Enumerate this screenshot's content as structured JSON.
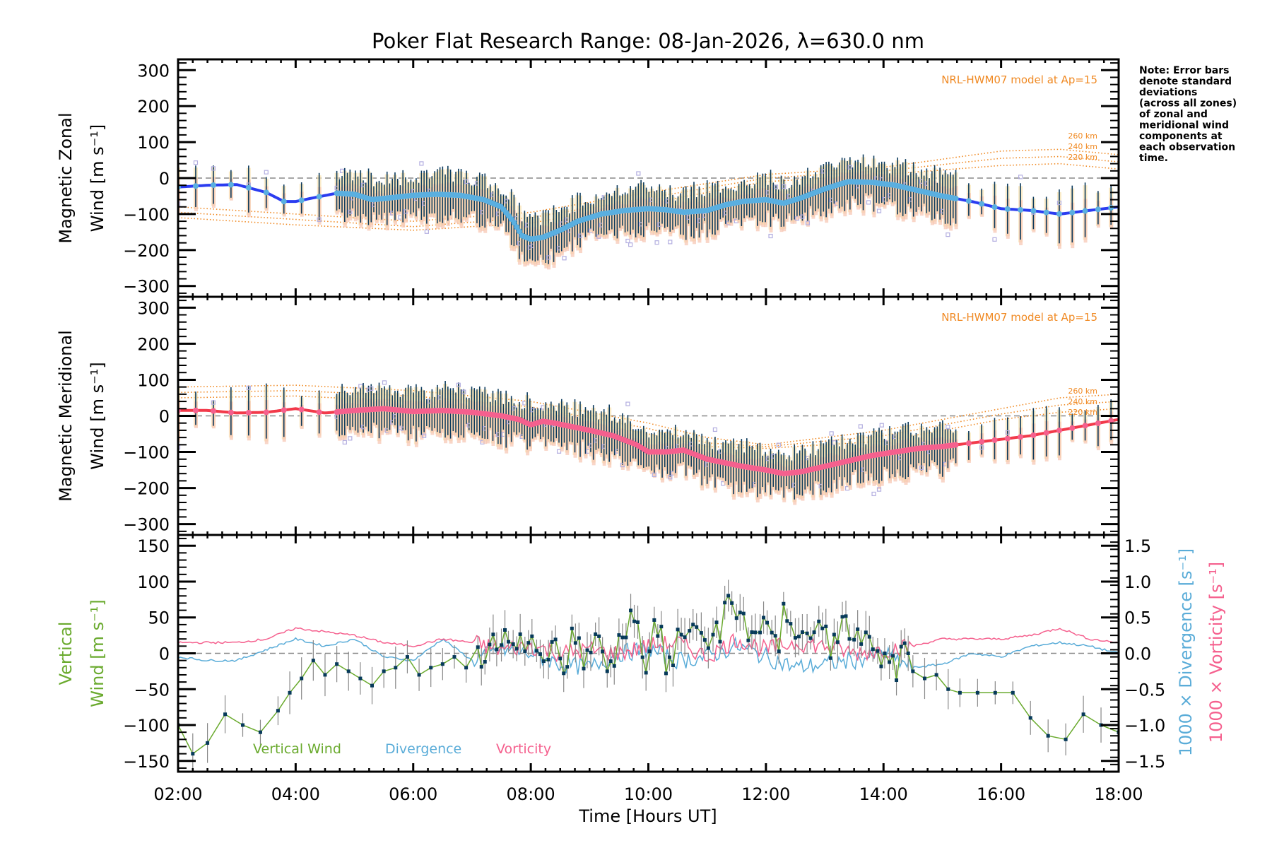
{
  "chart_data": {
    "title": "Poker Flat Research Range: 08-Jan-2026, λ=630.0 nm",
    "xlabel": "Time [Hours UT]",
    "x_ticks": [
      "02:00",
      "04:00",
      "06:00",
      "08:00",
      "10:00",
      "12:00",
      "14:00",
      "16:00",
      "18:00"
    ],
    "xlim_hours": [
      2,
      18
    ],
    "note": [
      "Note: Error bars",
      "denote standard",
      "deviations",
      "(across all zones)",
      "of zonal and",
      "meridional wind",
      "components at",
      "each observation",
      "time."
    ],
    "colors": {
      "zonal_fit": "#2b3cf0",
      "zonal_points": "#5aafe0",
      "meridional_fit": "#f23a4a",
      "meridional_points": "#f5608e",
      "error_bar": "#0d3b5c",
      "zone_scatter": "#b3aee0",
      "zone_band_warm": "#f7c4b0",
      "zone_band_yellow": "#f8e3b0",
      "model": "#f08a24",
      "vertical": "#6aaa2e",
      "vertical_marker": "#073a5a",
      "divergence": "#5aacd8",
      "vorticity": "#f5608e",
      "zero_line": "#888888"
    },
    "panels": [
      {
        "type": "line",
        "name": "zonal",
        "ylabel_line1": "Magnetic Zonal",
        "ylabel_line2": "Wind [m s⁻¹]",
        "ylim": [
          -330,
          330
        ],
        "y_ticks": [
          300,
          200,
          100,
          0,
          -100,
          -200,
          -300
        ],
        "y_tick_labels": [
          "300",
          "200",
          "100",
          "0",
          "−100",
          "−200",
          "−300"
        ],
        "model_label": "NRL-HWM07 model at Ap=15",
        "model_altitudes": [
          "260 km",
          "240 km",
          "220 km"
        ],
        "series": [
          {
            "name": "Zonal wind (fit)",
            "x": [
              2.0,
              2.5,
              3.0,
              3.5,
              3.8,
              4.0,
              4.3,
              4.7,
              5.0,
              5.3,
              5.6,
              6.0,
              6.4,
              6.8,
              7.2,
              7.5,
              7.7,
              7.85,
              8.0,
              8.2,
              8.5,
              8.8,
              9.2,
              9.6,
              10.0,
              10.3,
              10.6,
              11.0,
              11.3,
              11.6,
              12.0,
              12.3,
              12.6,
              13.0,
              13.4,
              13.8,
              14.2,
              14.6,
              15.0,
              15.5,
              16.0,
              16.5,
              17.0,
              17.5,
              18.0
            ],
            "y": [
              -25,
              -20,
              -18,
              -40,
              -65,
              -65,
              -55,
              -42,
              -45,
              -60,
              -55,
              -48,
              -45,
              -48,
              -60,
              -80,
              -120,
              -160,
              -170,
              -165,
              -145,
              -120,
              -100,
              -90,
              -85,
              -88,
              -95,
              -90,
              -75,
              -65,
              -60,
              -70,
              -55,
              -30,
              -10,
              -12,
              -20,
              -35,
              -50,
              -65,
              -85,
              -90,
              -100,
              -90,
              -80
            ]
          },
          {
            "name": "Model 260 km",
            "x": [
              2,
              4,
              6,
              8,
              10,
              12,
              14,
              16,
              17,
              18
            ],
            "y": [
              -80,
              -100,
              -120,
              -95,
              -40,
              10,
              30,
              75,
              80,
              65
            ]
          },
          {
            "name": "Model 240 km",
            "x": [
              2,
              4,
              6,
              8,
              10,
              12,
              14,
              16,
              17,
              18
            ],
            "y": [
              -95,
              -115,
              -135,
              -110,
              -55,
              0,
              20,
              55,
              60,
              45
            ]
          },
          {
            "name": "Model 220 km",
            "x": [
              2,
              4,
              6,
              8,
              10,
              12,
              14,
              16,
              17,
              18
            ],
            "y": [
              -110,
              -130,
              -145,
              -125,
              -70,
              -10,
              10,
              35,
              40,
              25
            ]
          }
        ]
      },
      {
        "type": "line",
        "name": "meridional",
        "ylabel_line1": "Magnetic Meridional",
        "ylabel_line2": "Wind [m s⁻¹]",
        "ylim": [
          -330,
          330
        ],
        "y_ticks": [
          300,
          200,
          100,
          0,
          -100,
          -200,
          -300
        ],
        "y_tick_labels": [
          "300",
          "200",
          "100",
          "0",
          "−100",
          "−200",
          "−300"
        ],
        "model_label": "NRL-HWM07 model at Ap=15",
        "model_altitudes": [
          "260 km",
          "240 km",
          "220 km"
        ],
        "series": [
          {
            "name": "Meridional wind (fit)",
            "x": [
              2.0,
              2.5,
              3.0,
              3.5,
              4.0,
              4.5,
              5.0,
              5.5,
              6.0,
              6.5,
              7.0,
              7.5,
              7.8,
              8.0,
              8.2,
              8.4,
              8.7,
              9.0,
              9.4,
              9.8,
              10.0,
              10.3,
              10.6,
              11.0,
              11.3,
              11.6,
              12.0,
              12.3,
              12.6,
              13.0,
              13.4,
              13.8,
              14.2,
              14.6,
              15.0,
              15.5,
              16.0,
              16.5,
              17.0,
              17.5,
              18.0
            ],
            "y": [
              15,
              15,
              8,
              10,
              20,
              8,
              15,
              20,
              12,
              15,
              10,
              0,
              -10,
              -25,
              -15,
              -20,
              -30,
              -40,
              -55,
              -80,
              -100,
              -100,
              -95,
              -120,
              -130,
              -140,
              -150,
              -160,
              -155,
              -140,
              -125,
              -110,
              -100,
              -90,
              -85,
              -75,
              -65,
              -55,
              -40,
              -25,
              -10
            ]
          },
          {
            "name": "Model 260 km",
            "x": [
              2,
              4,
              6,
              8,
              10,
              11,
              12,
              14,
              16,
              17,
              18
            ],
            "y": [
              80,
              85,
              70,
              40,
              -20,
              -60,
              -80,
              -40,
              20,
              50,
              60
            ]
          },
          {
            "name": "Model 240 km",
            "x": [
              2,
              4,
              6,
              8,
              10,
              11,
              12,
              14,
              16,
              17,
              18
            ],
            "y": [
              65,
              70,
              55,
              25,
              -35,
              -75,
              -85,
              -55,
              5,
              30,
              40
            ]
          },
          {
            "name": "Model 220 km",
            "x": [
              2,
              4,
              6,
              8,
              10,
              11,
              12,
              14,
              16,
              17,
              18
            ],
            "y": [
              50,
              55,
              40,
              10,
              -50,
              -85,
              -90,
              -70,
              -10,
              10,
              20
            ]
          }
        ]
      },
      {
        "type": "line",
        "name": "vertical",
        "ylabel_line1": "Vertical",
        "ylabel_line2": "Wind [m s⁻¹]",
        "ylim": [
          -165,
          165
        ],
        "y_ticks": [
          150,
          100,
          50,
          0,
          -50,
          -100,
          -150
        ],
        "y_tick_labels": [
          "150",
          "100",
          "50",
          "0",
          "−50",
          "−100",
          "−150"
        ],
        "y2label_1": "1000 × Divergence [s⁻¹]",
        "y2label_2": "1000 × Vorticity [s⁻¹]",
        "y2lim": [
          -1.65,
          1.65
        ],
        "y2_ticks": [
          1.5,
          1.0,
          0.5,
          0.0,
          -0.5,
          -1.0,
          -1.5
        ],
        "y2_tick_labels": [
          "1.5",
          "1.0",
          "0.5",
          "0.0",
          "−0.5",
          "−1.0",
          "−1.5"
        ],
        "legend": [
          "Vertical Wind",
          "Divergence",
          "Vorticity"
        ],
        "series": [
          {
            "name": "Vertical Wind",
            "x": [
              2.0,
              2.25,
              2.5,
              2.8,
              3.1,
              3.4,
              3.7,
              3.9,
              4.1,
              4.3,
              4.5,
              4.7,
              4.9,
              5.1,
              5.3,
              5.5,
              5.7,
              5.9,
              6.1,
              6.3,
              6.5,
              6.7,
              6.9,
              7.1,
              7.3,
              7.5,
              7.7,
              7.9,
              8.1,
              8.3,
              8.5,
              8.7,
              8.9,
              9.1,
              9.3,
              9.5,
              9.7,
              9.9,
              10.1,
              10.3,
              10.5,
              10.7,
              10.9,
              11.1,
              11.3,
              11.5,
              11.7,
              11.9,
              12.1,
              12.3,
              12.5,
              12.7,
              12.9,
              13.1,
              13.3,
              13.5,
              13.7,
              13.9,
              14.1,
              14.3,
              14.5,
              14.7,
              14.9,
              15.1,
              15.3,
              15.6,
              15.9,
              16.2,
              16.5,
              16.8,
              17.1,
              17.4,
              17.7,
              18.0
            ],
            "y": [
              -100,
              -140,
              -125,
              -85,
              -100,
              -110,
              -80,
              -55,
              -35,
              -10,
              -30,
              -15,
              -25,
              -35,
              -45,
              -25,
              -20,
              -5,
              -30,
              -20,
              -15,
              -5,
              -20,
              -10,
              15,
              30,
              25,
              10,
              -10,
              5,
              -15,
              20,
              -5,
              15,
              -20,
              35,
              45,
              -10,
              30,
              -15,
              20,
              40,
              10,
              35,
              65,
              50,
              30,
              40,
              10,
              55,
              30,
              20,
              45,
              10,
              35,
              25,
              15,
              -10,
              -20,
              -5,
              -25,
              -35,
              -30,
              -50,
              -55,
              -55,
              -55,
              -55,
              -90,
              -115,
              -120,
              -85,
              -100,
              -110
            ]
          },
          {
            "name": "Divergence",
            "x": [
              2.0,
              2.5,
              3.0,
              3.5,
              4.0,
              4.5,
              5.0,
              5.5,
              6.0,
              6.5,
              7.0,
              7.5,
              8.0,
              8.5,
              9.0,
              9.5,
              10.0,
              10.5,
              11.0,
              11.5,
              12.0,
              12.5,
              13.0,
              13.5,
              14.0,
              14.5,
              15.0,
              15.5,
              16.0,
              16.5,
              17.0,
              17.5,
              18.0
            ],
            "y": [
              -0.05,
              -0.1,
              -0.1,
              0.05,
              0.2,
              0.1,
              0.2,
              -0.05,
              -0.1,
              0.2,
              -0.1,
              0.05,
              0.0,
              -0.15,
              -0.2,
              0.0,
              0.05,
              -0.1,
              -0.05,
              0.1,
              -0.05,
              -0.2,
              -0.15,
              -0.1,
              0.0,
              -0.2,
              -0.15,
              0.0,
              -0.05,
              0.1,
              0.15,
              0.1,
              0.0
            ]
          },
          {
            "name": "Vorticity",
            "x": [
              2.0,
              2.5,
              3.0,
              3.5,
              4.0,
              4.5,
              5.0,
              5.5,
              6.0,
              6.5,
              7.0,
              7.5,
              8.0,
              8.5,
              9.0,
              9.5,
              10.0,
              10.5,
              11.0,
              11.5,
              12.0,
              12.5,
              13.0,
              13.5,
              14.0,
              14.5,
              15.0,
              15.5,
              16.0,
              16.5,
              17.0,
              17.5,
              18.0
            ],
            "y": [
              0.15,
              0.15,
              0.15,
              0.2,
              0.35,
              0.3,
              0.25,
              0.15,
              0.1,
              0.2,
              0.15,
              0.05,
              0.1,
              0.0,
              0.05,
              0.0,
              0.1,
              0.15,
              -0.05,
              0.2,
              0.05,
              0.15,
              0.1,
              0.0,
              0.05,
              0.1,
              0.2,
              0.2,
              0.2,
              0.25,
              0.35,
              0.2,
              0.15
            ]
          }
        ]
      }
    ]
  }
}
